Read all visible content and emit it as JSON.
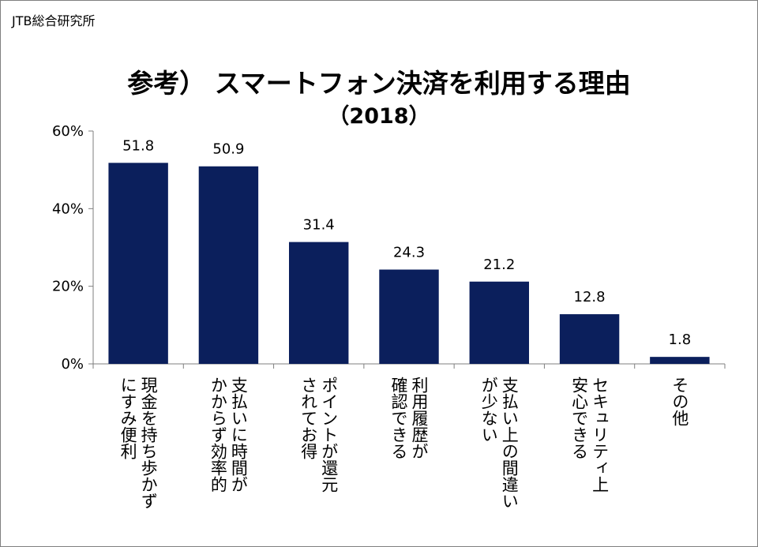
{
  "source": "JTB総合研究所",
  "colors": {
    "bar": "#0b1f5c",
    "axis": "#7f7f7f"
  },
  "chart_data": {
    "type": "bar",
    "title": "参考） スマートフォン決済を利用する理由",
    "subtitle": "（2018）",
    "categories": [
      "現金を持ち歩かずにすみ便利",
      "支払いに時間がかからず効率的",
      "ポイントが還元されてお得",
      "利用履歴が確認できる",
      "支払い上の間違いが少ない",
      "セキュリティ上安心できる",
      "その他"
    ],
    "category_label_lines": [
      [
        "現金を持ち歩かず",
        "にすみ便利"
      ],
      [
        "支払いに時間が",
        "かからず効率的"
      ],
      [
        "ポイントが還元",
        "されてお得"
      ],
      [
        "利用履歴が",
        "確認できる"
      ],
      [
        "支払い上の間違い",
        "が少ない"
      ],
      [
        "セキュリティ上",
        "安心できる"
      ],
      [
        "その他"
      ]
    ],
    "values": [
      51.8,
      50.9,
      31.4,
      24.3,
      21.2,
      12.8,
      1.8
    ],
    "data_labels": [
      "51.8",
      "50.9",
      "31.4",
      "24.3",
      "21.2",
      "12.8",
      "1.8"
    ],
    "y_ticks": [
      0,
      20,
      40,
      60
    ],
    "y_tick_labels": [
      "0%",
      "20%",
      "40%",
      "60%"
    ],
    "ylim": [
      0,
      60
    ],
    "grid": false,
    "legend": "none"
  }
}
